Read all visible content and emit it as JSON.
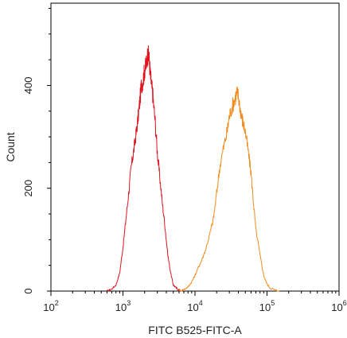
{
  "chart_data": {
    "type": "line",
    "title": "",
    "xlabel": "FITC B525-FITC-A",
    "ylabel": "Count",
    "x_scale": "log",
    "xlim": [
      100,
      1000000
    ],
    "ylim": [
      0,
      560
    ],
    "grid": false,
    "x_ticks": [
      {
        "value": 100,
        "base": "10",
        "exp": "2"
      },
      {
        "value": 1000,
        "base": "10",
        "exp": "3"
      },
      {
        "value": 10000,
        "base": "10",
        "exp": "4"
      },
      {
        "value": 100000,
        "base": "10",
        "exp": "5"
      },
      {
        "value": 1000000,
        "base": "10",
        "exp": "6"
      }
    ],
    "y_ticks": [
      {
        "value": 0,
        "label": "0"
      },
      {
        "value": 200,
        "label": "200"
      },
      {
        "value": 400,
        "label": "400"
      }
    ],
    "series": [
      {
        "color": "#e0141e",
        "x": [
          600,
          700,
          800,
          900,
          1000,
          1100,
          1200,
          1300,
          1400,
          1500,
          1600,
          1700,
          1800,
          1900,
          2000,
          2100,
          2200,
          2300,
          2400,
          2500,
          2600,
          2800,
          3000,
          3200,
          3500,
          3800,
          4200,
          4600,
          5000,
          5500,
          6000,
          7000
        ],
        "y": [
          0,
          4,
          12,
          35,
          85,
          140,
          190,
          240,
          270,
          300,
          330,
          365,
          400,
          410,
          430,
          440,
          460,
          455,
          420,
          400,
          380,
          330,
          270,
          230,
          175,
          130,
          70,
          35,
          12,
          6,
          2,
          0
        ]
      },
      {
        "color": "#f08c1e",
        "x": [
          6000,
          7000,
          8000,
          9000,
          10000,
          11000,
          12000,
          14000,
          16000,
          18000,
          20000,
          22000,
          25000,
          28000,
          30000,
          33000,
          36000,
          38000,
          40000,
          43000,
          46000,
          50000,
          55000,
          60000,
          65000,
          70000,
          80000,
          90000,
          100000,
          110000,
          130000,
          150000
        ],
        "y": [
          0,
          3,
          8,
          18,
          30,
          45,
          55,
          80,
          110,
          140,
          190,
          240,
          280,
          310,
          340,
          360,
          375,
          385,
          380,
          350,
          330,
          310,
          270,
          230,
          170,
          120,
          70,
          30,
          14,
          6,
          2,
          0
        ]
      }
    ]
  }
}
